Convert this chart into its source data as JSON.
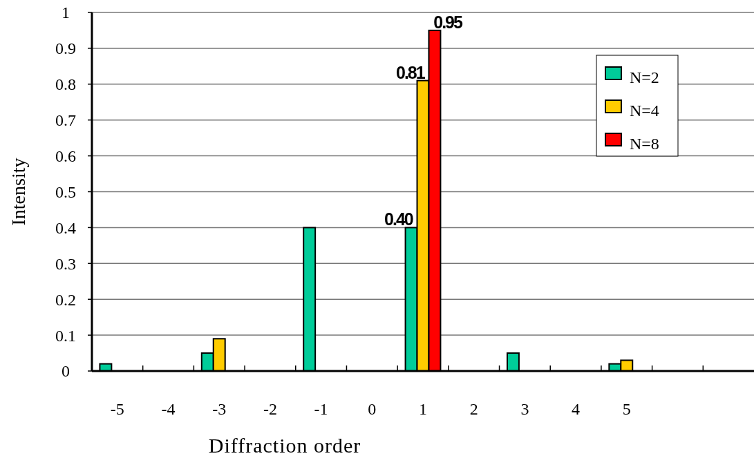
{
  "chart_data": {
    "type": "bar",
    "xlabel": "Diffraction order",
    "ylabel": "Intensity",
    "categories": [
      "-5",
      "-4",
      "-3",
      "-2",
      "-1",
      "0",
      "1",
      "2",
      "3",
      "4",
      "5",
      null,
      null
    ],
    "series": [
      {
        "name": "N=2",
        "color": "#00cc99",
        "values": [
          0.02,
          null,
          0.05,
          null,
          0.4,
          null,
          0.4,
          null,
          0.05,
          null,
          0.02,
          null,
          null
        ],
        "value_labels": [
          null,
          null,
          null,
          null,
          null,
          null,
          "0.40",
          null,
          null,
          null,
          null,
          null,
          null
        ]
      },
      {
        "name": "N=4",
        "color": "#ffcc00",
        "values": [
          null,
          null,
          0.09,
          null,
          null,
          null,
          0.81,
          null,
          null,
          null,
          0.03,
          null,
          null
        ],
        "value_labels": [
          null,
          null,
          null,
          null,
          null,
          null,
          "0.81",
          null,
          null,
          null,
          null,
          null,
          null
        ]
      },
      {
        "name": "N=8",
        "color": "#ff0000",
        "values": [
          null,
          null,
          null,
          null,
          null,
          null,
          0.95,
          null,
          null,
          null,
          null,
          null,
          null
        ],
        "value_labels": [
          null,
          null,
          null,
          null,
          null,
          null,
          "0.95",
          null,
          null,
          null,
          null,
          null,
          null
        ]
      }
    ],
    "ylim": [
      0,
      1
    ],
    "yticks": [
      0,
      0.1,
      0.2,
      0.3,
      0.4,
      0.5,
      0.6,
      0.7,
      0.8,
      0.9,
      1
    ],
    "grid": "y",
    "legend": "top right"
  }
}
